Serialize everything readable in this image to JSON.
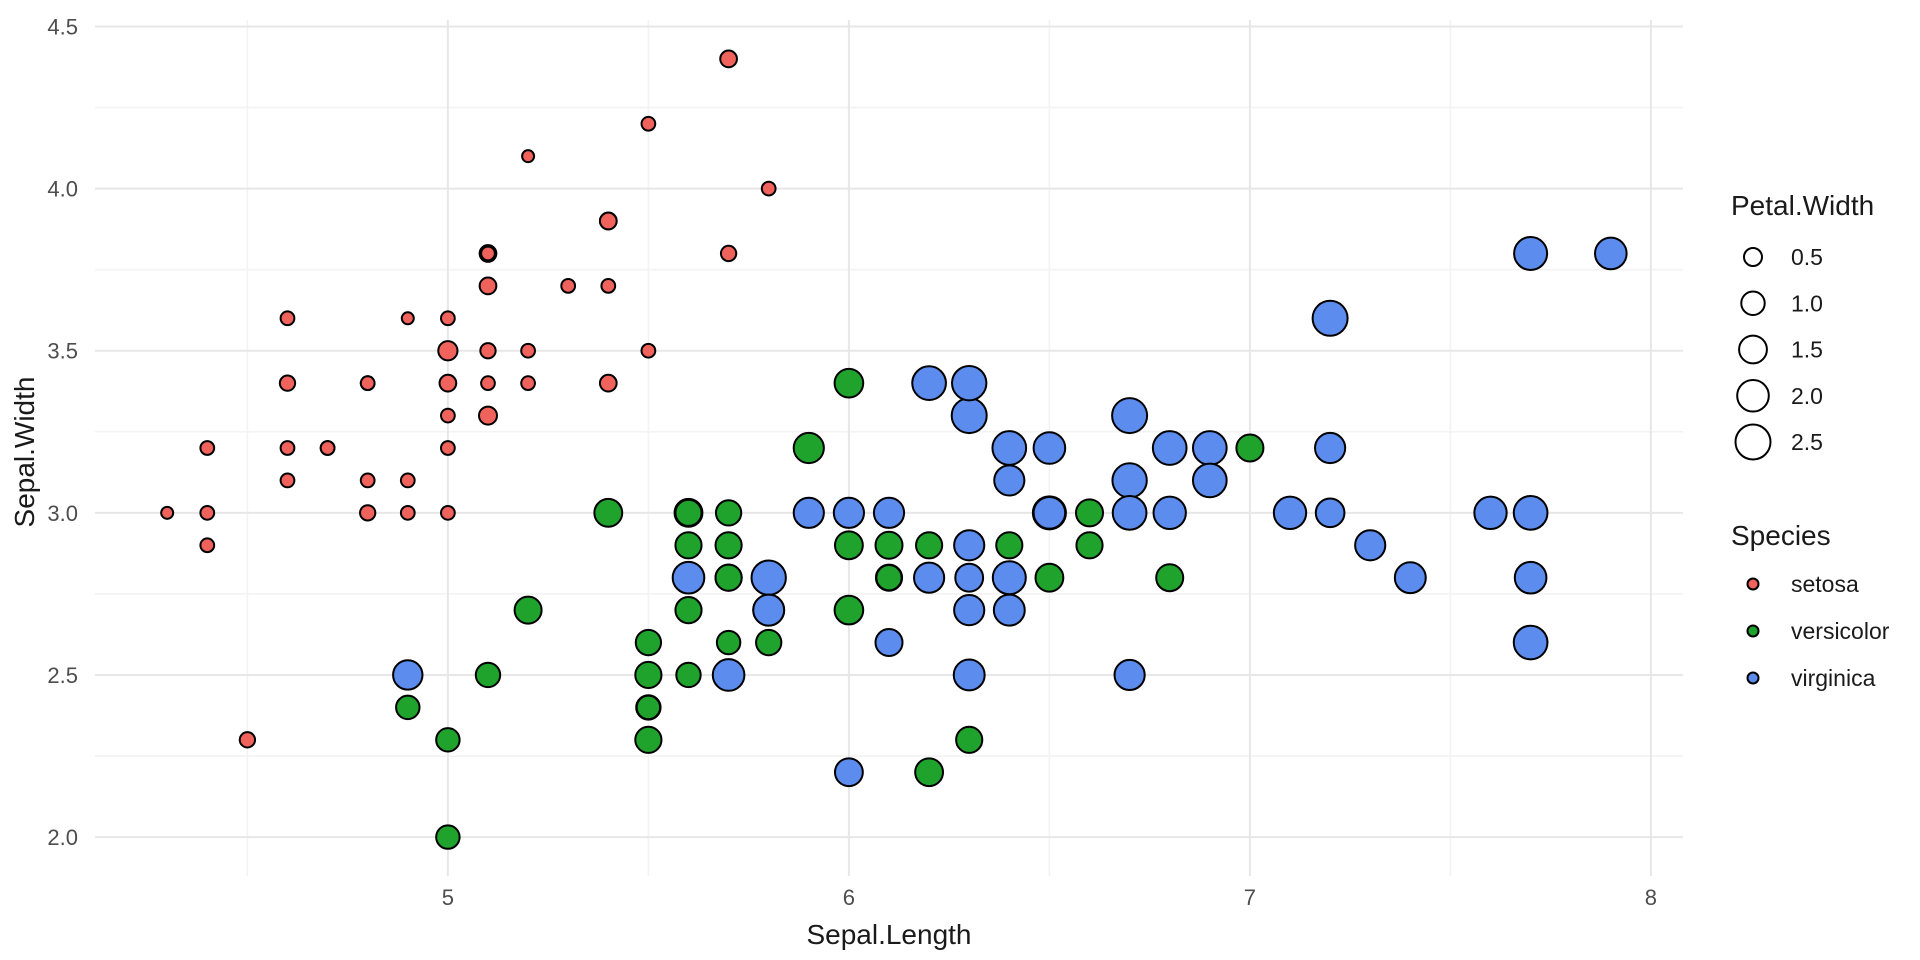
{
  "chart_data": {
    "type": "scatter",
    "title": "",
    "xlabel": "Sepal.Length",
    "ylabel": "Sepal.Width",
    "x_ticks": [
      5,
      6,
      7,
      8
    ],
    "x_tick_labels": [
      "5",
      "6",
      "7",
      "8"
    ],
    "y_ticks": [
      2.0,
      2.5,
      3.0,
      3.5,
      4.0,
      4.5
    ],
    "y_tick_labels": [
      "2.0",
      "2.5",
      "3.0",
      "3.5",
      "4.0",
      "4.5"
    ],
    "x_minor_ticks": [
      4.5,
      5.5,
      6.5,
      7.5
    ],
    "y_minor_ticks": [
      2.25,
      2.75,
      3.25,
      3.75,
      4.25
    ],
    "xlim": [
      4.12,
      8.08
    ],
    "ylim": [
      1.88,
      4.52
    ],
    "grid": true,
    "background": "#ffffff",
    "legend_position": "right",
    "point_outline_color": "#000000",
    "size_legend": {
      "title": "Petal.Width",
      "breaks": [
        0.5,
        1.0,
        1.5,
        2.0,
        2.5
      ],
      "labels": [
        "0.5",
        "1.0",
        "1.5",
        "2.0",
        "2.5"
      ]
    },
    "color_legend": {
      "title": "Species",
      "entries": [
        {
          "label": "setosa",
          "color": "#F0635C"
        },
        {
          "label": "versicolor",
          "color": "#1FA32C"
        },
        {
          "label": "virginica",
          "color": "#5B8CEE"
        }
      ]
    },
    "series": [
      {
        "name": "setosa",
        "color": "#F0635C",
        "points_format": [
          "sepal_length",
          "sepal_width",
          "petal_width"
        ],
        "points": [
          [
            5.1,
            3.5,
            0.2
          ],
          [
            4.9,
            3.0,
            0.2
          ],
          [
            4.7,
            3.2,
            0.2
          ],
          [
            4.6,
            3.1,
            0.2
          ],
          [
            5.0,
            3.6,
            0.2
          ],
          [
            5.4,
            3.9,
            0.4
          ],
          [
            4.6,
            3.4,
            0.3
          ],
          [
            5.0,
            3.4,
            0.2
          ],
          [
            4.4,
            2.9,
            0.2
          ],
          [
            4.9,
            3.1,
            0.1
          ],
          [
            5.4,
            3.7,
            0.2
          ],
          [
            4.8,
            3.4,
            0.2
          ],
          [
            4.8,
            3.0,
            0.1
          ],
          [
            4.3,
            3.0,
            0.1
          ],
          [
            5.8,
            4.0,
            0.2
          ],
          [
            5.7,
            4.4,
            0.4
          ],
          [
            5.4,
            3.9,
            0.4
          ],
          [
            5.1,
            3.5,
            0.3
          ],
          [
            5.7,
            3.8,
            0.3
          ],
          [
            5.1,
            3.8,
            0.3
          ],
          [
            5.4,
            3.4,
            0.2
          ],
          [
            5.1,
            3.7,
            0.4
          ],
          [
            4.6,
            3.6,
            0.2
          ],
          [
            5.1,
            3.3,
            0.5
          ],
          [
            4.8,
            3.4,
            0.2
          ],
          [
            5.0,
            3.0,
            0.2
          ],
          [
            5.0,
            3.4,
            0.4
          ],
          [
            5.2,
            3.5,
            0.2
          ],
          [
            5.2,
            3.4,
            0.2
          ],
          [
            4.7,
            3.2,
            0.2
          ],
          [
            4.8,
            3.1,
            0.2
          ],
          [
            5.4,
            3.4,
            0.4
          ],
          [
            5.2,
            4.1,
            0.1
          ],
          [
            5.5,
            4.2,
            0.2
          ],
          [
            4.9,
            3.1,
            0.2
          ],
          [
            5.0,
            3.2,
            0.2
          ],
          [
            5.5,
            3.5,
            0.2
          ],
          [
            4.9,
            3.6,
            0.1
          ],
          [
            4.4,
            3.0,
            0.2
          ],
          [
            5.1,
            3.4,
            0.2
          ],
          [
            5.0,
            3.5,
            0.3
          ],
          [
            4.5,
            2.3,
            0.3
          ],
          [
            4.4,
            3.2,
            0.2
          ],
          [
            5.0,
            3.5,
            0.6
          ],
          [
            5.1,
            3.8,
            0.4
          ],
          [
            4.8,
            3.0,
            0.3
          ],
          [
            5.1,
            3.8,
            0.2
          ],
          [
            4.6,
            3.2,
            0.2
          ],
          [
            5.3,
            3.7,
            0.2
          ],
          [
            5.0,
            3.3,
            0.2
          ]
        ]
      },
      {
        "name": "versicolor",
        "color": "#1FA32C",
        "points_format": [
          "sepal_length",
          "sepal_width",
          "petal_width"
        ],
        "points": [
          [
            7.0,
            3.2,
            1.4
          ],
          [
            6.4,
            3.2,
            1.5
          ],
          [
            6.9,
            3.1,
            1.5
          ],
          [
            5.5,
            2.3,
            1.3
          ],
          [
            6.5,
            2.8,
            1.5
          ],
          [
            5.7,
            2.8,
            1.3
          ],
          [
            6.3,
            3.3,
            1.6
          ],
          [
            4.9,
            2.4,
            1.0
          ],
          [
            6.6,
            2.9,
            1.3
          ],
          [
            5.2,
            2.7,
            1.4
          ],
          [
            5.0,
            2.0,
            1.0
          ],
          [
            5.9,
            3.0,
            1.5
          ],
          [
            6.0,
            2.2,
            1.0
          ],
          [
            6.1,
            2.9,
            1.4
          ],
          [
            5.6,
            2.9,
            1.3
          ],
          [
            6.7,
            3.1,
            1.4
          ],
          [
            5.6,
            3.0,
            1.5
          ],
          [
            5.8,
            2.7,
            1.0
          ],
          [
            6.2,
            2.2,
            1.5
          ],
          [
            5.6,
            2.5,
            1.1
          ],
          [
            5.9,
            3.2,
            1.8
          ],
          [
            6.1,
            2.8,
            1.3
          ],
          [
            6.3,
            2.5,
            1.5
          ],
          [
            6.1,
            2.8,
            1.2
          ],
          [
            6.4,
            2.9,
            1.3
          ],
          [
            6.6,
            3.0,
            1.4
          ],
          [
            6.8,
            2.8,
            1.4
          ],
          [
            6.7,
            3.0,
            1.7
          ],
          [
            6.0,
            2.9,
            1.5
          ],
          [
            5.7,
            2.6,
            1.0
          ],
          [
            5.5,
            2.4,
            1.1
          ],
          [
            5.5,
            2.4,
            1.0
          ],
          [
            5.8,
            2.7,
            1.2
          ],
          [
            6.0,
            2.7,
            1.6
          ],
          [
            5.4,
            3.0,
            1.5
          ],
          [
            6.0,
            3.4,
            1.6
          ],
          [
            6.7,
            3.1,
            1.5
          ],
          [
            6.3,
            2.3,
            1.3
          ],
          [
            5.6,
            3.0,
            1.3
          ],
          [
            5.5,
            2.5,
            1.3
          ],
          [
            5.5,
            2.6,
            1.2
          ],
          [
            6.1,
            3.0,
            1.4
          ],
          [
            5.8,
            2.6,
            1.2
          ],
          [
            5.0,
            2.3,
            1.0
          ],
          [
            5.6,
            2.7,
            1.3
          ],
          [
            5.7,
            3.0,
            1.2
          ],
          [
            5.7,
            2.9,
            1.3
          ],
          [
            6.2,
            2.9,
            1.3
          ],
          [
            5.1,
            2.5,
            1.1
          ],
          [
            5.7,
            2.8,
            1.3
          ]
        ]
      },
      {
        "name": "virginica",
        "color": "#5B8CEE",
        "points_format": [
          "sepal_length",
          "sepal_width",
          "petal_width"
        ],
        "points": [
          [
            6.3,
            3.3,
            2.5
          ],
          [
            5.8,
            2.7,
            1.9
          ],
          [
            7.1,
            3.0,
            2.1
          ],
          [
            6.3,
            2.9,
            1.8
          ],
          [
            6.5,
            3.0,
            2.2
          ],
          [
            7.6,
            3.0,
            2.1
          ],
          [
            4.9,
            2.5,
            1.7
          ],
          [
            7.3,
            2.9,
            1.8
          ],
          [
            6.7,
            2.5,
            1.8
          ],
          [
            7.2,
            3.6,
            2.5
          ],
          [
            6.5,
            3.2,
            2.0
          ],
          [
            6.4,
            2.7,
            1.9
          ],
          [
            6.8,
            3.0,
            2.1
          ],
          [
            5.7,
            2.5,
            2.0
          ],
          [
            5.8,
            2.8,
            2.4
          ],
          [
            6.4,
            3.2,
            2.3
          ],
          [
            6.5,
            3.0,
            1.8
          ],
          [
            7.7,
            3.8,
            2.2
          ],
          [
            7.7,
            2.6,
            2.3
          ],
          [
            6.0,
            2.2,
            1.5
          ],
          [
            6.9,
            3.2,
            2.3
          ],
          [
            5.6,
            2.8,
            2.0
          ],
          [
            7.7,
            2.8,
            2.0
          ],
          [
            6.3,
            2.7,
            1.8
          ],
          [
            6.7,
            3.3,
            2.1
          ],
          [
            7.2,
            3.2,
            1.8
          ],
          [
            6.2,
            2.8,
            1.8
          ],
          [
            6.1,
            3.0,
            1.8
          ],
          [
            6.4,
            2.8,
            2.1
          ],
          [
            7.2,
            3.0,
            1.6
          ],
          [
            7.4,
            2.8,
            1.9
          ],
          [
            7.9,
            3.8,
            2.0
          ],
          [
            6.4,
            2.8,
            2.2
          ],
          [
            6.3,
            2.8,
            1.5
          ],
          [
            6.1,
            2.6,
            1.4
          ],
          [
            7.7,
            3.0,
            2.3
          ],
          [
            6.3,
            3.4,
            2.4
          ],
          [
            6.4,
            3.1,
            1.8
          ],
          [
            6.0,
            3.0,
            1.8
          ],
          [
            6.9,
            3.1,
            2.1
          ],
          [
            6.7,
            3.1,
            2.4
          ],
          [
            6.9,
            3.1,
            2.3
          ],
          [
            5.8,
            2.7,
            1.9
          ],
          [
            6.8,
            3.2,
            2.3
          ],
          [
            6.7,
            3.3,
            2.5
          ],
          [
            6.7,
            3.0,
            2.3
          ],
          [
            6.3,
            2.5,
            1.9
          ],
          [
            6.5,
            3.0,
            2.0
          ],
          [
            6.2,
            3.4,
            2.3
          ],
          [
            5.9,
            3.0,
            1.8
          ]
        ]
      }
    ]
  }
}
